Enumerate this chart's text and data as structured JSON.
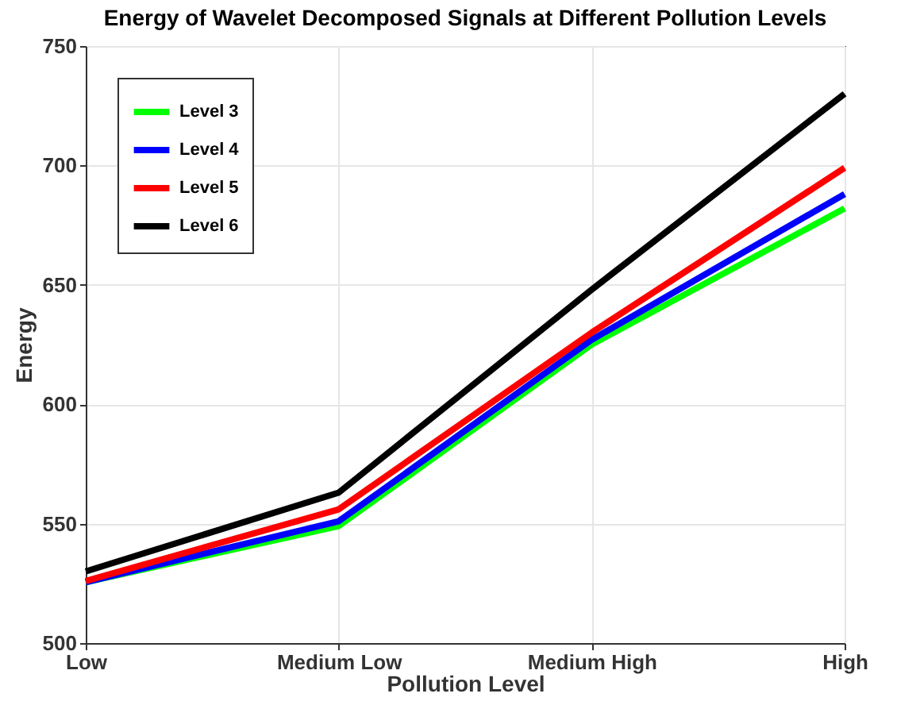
{
  "chart_data": {
    "type": "line",
    "title": "Energy of Wavelet Decomposed Signals at Different Pollution Levels",
    "xlabel": "Pollution Level",
    "ylabel": "Energy",
    "categories": [
      "Low",
      "Medium Low",
      "Medium High",
      "High"
    ],
    "series": [
      {
        "name": "Level 3",
        "color": "#00ff00",
        "values": [
          525.5,
          549,
          625,
          682
        ]
      },
      {
        "name": "Level 4",
        "color": "#0000ff",
        "values": [
          525.5,
          551,
          627,
          688
        ]
      },
      {
        "name": "Level 5",
        "color": "#ff0000",
        "values": [
          526,
          556,
          630,
          699
        ]
      },
      {
        "name": "Level 6",
        "color": "#000000",
        "values": [
          530,
          563,
          648,
          730
        ]
      }
    ],
    "ylim": [
      500,
      750
    ],
    "yticks": [
      500,
      550,
      600,
      650,
      700,
      750
    ],
    "grid": true,
    "legend": "top left",
    "marker": "none",
    "line_style": "solid"
  }
}
